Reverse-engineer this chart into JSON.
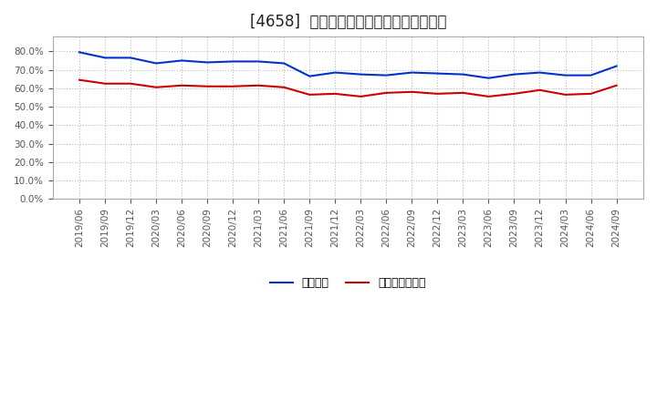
{
  "title": "[4658]  固定比率、固定長期適合率の推移",
  "x_labels": [
    "2019/06",
    "2019/09",
    "2019/12",
    "2020/03",
    "2020/06",
    "2020/09",
    "2020/12",
    "2021/03",
    "2021/06",
    "2021/09",
    "2021/12",
    "2022/03",
    "2022/06",
    "2022/09",
    "2022/12",
    "2023/03",
    "2023/06",
    "2023/09",
    "2023/12",
    "2024/03",
    "2024/06",
    "2024/09"
  ],
  "fixed_ratio": [
    79.5,
    76.5,
    76.5,
    73.5,
    75.0,
    74.0,
    74.5,
    74.5,
    73.5,
    66.5,
    68.5,
    67.5,
    67.0,
    68.5,
    68.0,
    67.5,
    65.5,
    67.5,
    68.5,
    67.0,
    67.0,
    72.0
  ],
  "fixed_lt_ratio": [
    64.5,
    62.5,
    62.5,
    60.5,
    61.5,
    61.0,
    61.0,
    61.5,
    60.5,
    56.5,
    57.0,
    55.5,
    57.5,
    58.0,
    57.0,
    57.5,
    55.5,
    57.0,
    59.0,
    56.5,
    57.0,
    61.5
  ],
  "blue_color": "#0033cc",
  "red_color": "#cc0000",
  "bg_color": "#ffffff",
  "plot_bg_color": "#ffffff",
  "grid_color": "#bbbbbb",
  "ylim": [
    0.0,
    88.0
  ],
  "yticks": [
    0.0,
    10.0,
    20.0,
    30.0,
    40.0,
    50.0,
    60.0,
    70.0,
    80.0
  ],
  "legend_fixed": "固定比率",
  "legend_lt": "固定長期適合率",
  "title_fontsize": 12,
  "axis_fontsize": 7.5,
  "legend_fontsize": 9
}
